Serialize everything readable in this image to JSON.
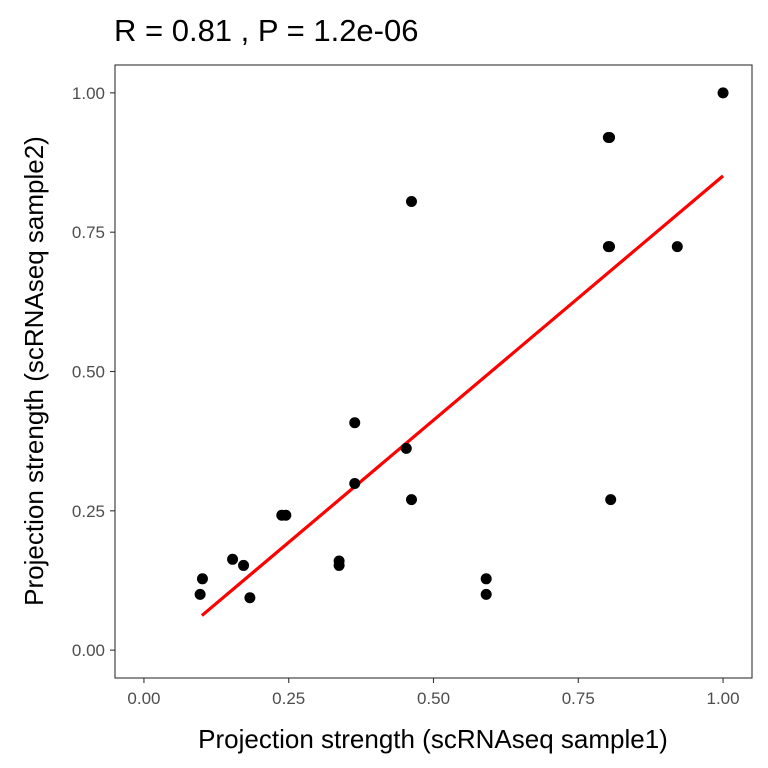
{
  "chart_data": {
    "type": "scatter",
    "title": "R = 0.81 , P = 1.2e-06",
    "xlabel": "Projection strength (scRNAseq sample1)",
    "ylabel": "Projection strength (scRNAseq sample2)",
    "xlim": [
      -0.05,
      1.05
    ],
    "ylim": [
      -0.05,
      1.05
    ],
    "xticks": [
      0.0,
      0.25,
      0.5,
      0.75,
      1.0
    ],
    "xtick_labels": [
      "0.00",
      "0.25",
      "0.50",
      "0.75",
      "1.00"
    ],
    "yticks": [
      0.0,
      0.25,
      0.5,
      0.75,
      1.0
    ],
    "ytick_labels": [
      "0.00",
      "0.25",
      "0.50",
      "0.75",
      "1.00"
    ],
    "grid": false,
    "legend": "none",
    "point_color": "#000000",
    "line_color": "#ff0000",
    "points": [
      {
        "x": 1.0,
        "y": 1.0
      },
      {
        "x": 0.802,
        "y": 0.92
      },
      {
        "x": 0.804,
        "y": 0.92
      },
      {
        "x": 0.462,
        "y": 0.805
      },
      {
        "x": 0.802,
        "y": 0.724
      },
      {
        "x": 0.804,
        "y": 0.724
      },
      {
        "x": 0.921,
        "y": 0.724
      },
      {
        "x": 0.364,
        "y": 0.408
      },
      {
        "x": 0.453,
        "y": 0.362
      },
      {
        "x": 0.364,
        "y": 0.299
      },
      {
        "x": 0.462,
        "y": 0.27
      },
      {
        "x": 0.806,
        "y": 0.27
      },
      {
        "x": 0.238,
        "y": 0.242
      },
      {
        "x": 0.245,
        "y": 0.242
      },
      {
        "x": 0.153,
        "y": 0.163
      },
      {
        "x": 0.337,
        "y": 0.16
      },
      {
        "x": 0.337,
        "y": 0.152
      },
      {
        "x": 0.172,
        "y": 0.152
      },
      {
        "x": 0.101,
        "y": 0.128
      },
      {
        "x": 0.591,
        "y": 0.128
      },
      {
        "x": 0.097,
        "y": 0.1
      },
      {
        "x": 0.591,
        "y": 0.1
      },
      {
        "x": 0.183,
        "y": 0.094
      }
    ],
    "fit_line": {
      "x": [
        0.1,
        1.0
      ],
      "y": [
        0.062,
        0.851
      ]
    }
  }
}
